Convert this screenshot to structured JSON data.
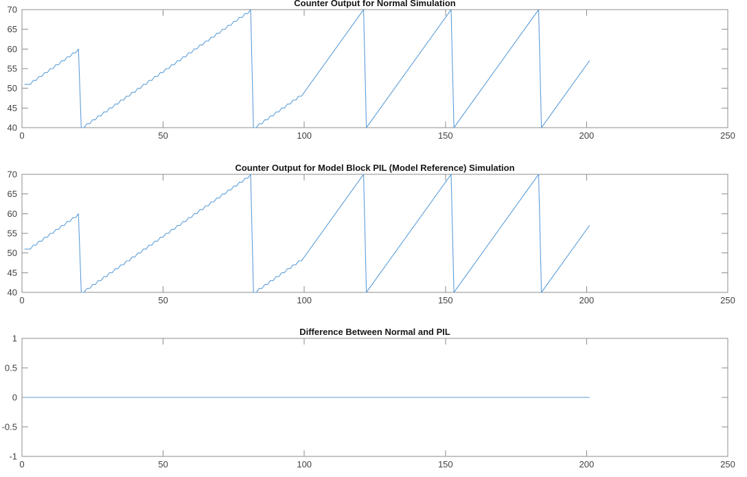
{
  "figure": {
    "background": "#ffffff",
    "line_color": "#5b9dd7",
    "axis_color": "#8b8b8b",
    "tick_label_color": "#3f3f3f",
    "title_color": "#171717"
  },
  "chart_data": [
    {
      "type": "line",
      "title": "Counter Output for Normal Simulation",
      "xlabel": "",
      "ylabel": "",
      "xlim": [
        0,
        250
      ],
      "ylim": [
        40,
        70
      ],
      "xticks": [
        "0",
        "50",
        "100",
        "150",
        "200",
        "250"
      ],
      "yticks": [
        "40",
        "45",
        "50",
        "55",
        "60",
        "65",
        "70"
      ],
      "grid": false,
      "legend": null,
      "series": [
        {
          "name": "counter-normal",
          "description": "Counter output: staircase ramps (+1 per 2 samples) and unit-slope ramps, wrapping from 70 down to 40; data from x=1 to x=201",
          "pieces": [
            {
              "mode": "stair",
              "x0": 1,
              "y0": 51,
              "x1": 20,
              "y1": 60
            },
            {
              "mode": "stair",
              "x0": 21,
              "y0": 40,
              "x1": 81,
              "y1": 70
            },
            {
              "mode": "stair",
              "x0": 82,
              "y0": 40,
              "x1": 100,
              "y1": 49
            },
            {
              "mode": "line",
              "x0": 100,
              "y0": 49,
              "x1": 121,
              "y1": 70
            },
            {
              "mode": "line",
              "x0": 122,
              "y0": 40,
              "x1": 152,
              "y1": 70
            },
            {
              "mode": "line",
              "x0": 153,
              "y0": 40,
              "x1": 183,
              "y1": 70
            },
            {
              "mode": "line",
              "x0": 184,
              "y0": 40,
              "x1": 201,
              "y1": 57
            }
          ]
        }
      ]
    },
    {
      "type": "line",
      "title": "Counter Output for Model Block PIL (Model Reference) Simulation",
      "xlabel": "",
      "ylabel": "",
      "xlim": [
        0,
        250
      ],
      "ylim": [
        40,
        70
      ],
      "xticks": [
        "0",
        "50",
        "100",
        "150",
        "200",
        "250"
      ],
      "yticks": [
        "40",
        "45",
        "50",
        "55",
        "60",
        "65",
        "70"
      ],
      "grid": false,
      "legend": null,
      "series": [
        {
          "name": "counter-pil",
          "description": "Identical counter output produced by the PIL (model reference) simulation",
          "pieces": [
            {
              "mode": "stair",
              "x0": 1,
              "y0": 51,
              "x1": 20,
              "y1": 60
            },
            {
              "mode": "stair",
              "x0": 21,
              "y0": 40,
              "x1": 81,
              "y1": 70
            },
            {
              "mode": "stair",
              "x0": 82,
              "y0": 40,
              "x1": 100,
              "y1": 49
            },
            {
              "mode": "line",
              "x0": 100,
              "y0": 49,
              "x1": 121,
              "y1": 70
            },
            {
              "mode": "line",
              "x0": 122,
              "y0": 40,
              "x1": 152,
              "y1": 70
            },
            {
              "mode": "line",
              "x0": 153,
              "y0": 40,
              "x1": 183,
              "y1": 70
            },
            {
              "mode": "line",
              "x0": 184,
              "y0": 40,
              "x1": 201,
              "y1": 57
            }
          ]
        }
      ]
    },
    {
      "type": "line",
      "title": "Difference Between Normal and PIL",
      "xlabel": "",
      "ylabel": "",
      "xlim": [
        0,
        250
      ],
      "ylim": [
        -1,
        1
      ],
      "xticks": [
        "0",
        "50",
        "100",
        "150",
        "200",
        "250"
      ],
      "yticks": [
        "-1",
        "-0.5",
        "0",
        "0.5",
        "1"
      ],
      "grid": false,
      "legend": null,
      "series": [
        {
          "name": "difference",
          "description": "Difference between normal and PIL outputs: constant zero from x=1 to x=201",
          "pieces": [
            {
              "mode": "line",
              "x0": 1,
              "y0": 0,
              "x1": 201,
              "y1": 0
            }
          ]
        }
      ]
    }
  ]
}
